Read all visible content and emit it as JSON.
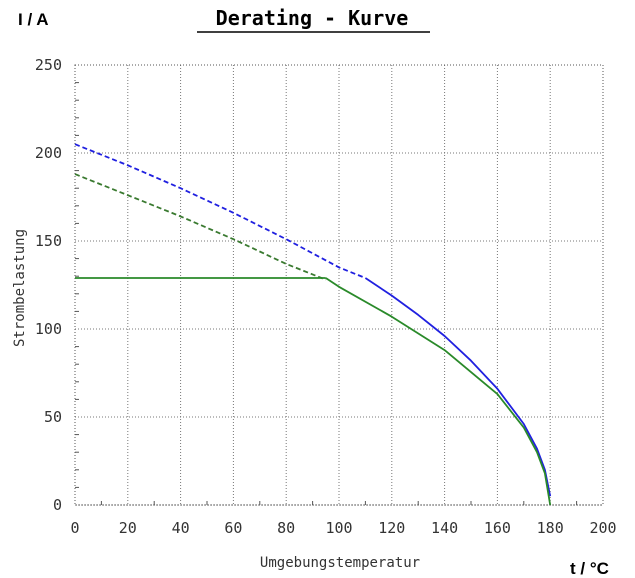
{
  "chart_data": {
    "type": "line",
    "title": "Derating - Kurve",
    "y_unit": "I / A",
    "x_unit": "t / °C",
    "xlabel": "Umgebungstemperatur",
    "ylabel": "Strombelastung",
    "xlim": [
      0,
      200
    ],
    "ylim": [
      0,
      250
    ],
    "x_ticks": [
      "0",
      "20",
      "40",
      "60",
      "80",
      "100",
      "120",
      "140",
      "160",
      "180",
      "200"
    ],
    "y_ticks": [
      "0",
      "50",
      "100",
      "150",
      "200",
      "250"
    ],
    "grid": true,
    "series": [
      {
        "style": "dashed",
        "color": "#2020e0",
        "x": [
          0,
          20,
          40,
          60,
          80,
          100,
          110
        ],
        "y": [
          205,
          193,
          180,
          166,
          151,
          135,
          129
        ]
      },
      {
        "style": "solid",
        "color": "#2020e0",
        "x": [
          110,
          120,
          130,
          140,
          150,
          160,
          170,
          175,
          178,
          180
        ],
        "y": [
          129,
          119,
          108,
          96,
          82,
          66,
          46,
          32,
          20,
          5
        ]
      },
      {
        "style": "dashed",
        "color": "#3a7a30",
        "x": [
          0,
          20,
          40,
          60,
          80,
          95
        ],
        "y": [
          188,
          176,
          164,
          151,
          137,
          128
        ]
      },
      {
        "style": "solid",
        "color": "#2a8a2a",
        "x": [
          0,
          20,
          40,
          60,
          80,
          95
        ],
        "y": [
          129,
          129,
          129,
          129,
          129,
          129
        ]
      },
      {
        "style": "solid",
        "color": "#2a8a2a",
        "x": [
          95,
          100,
          120,
          140,
          160,
          170,
          175,
          178,
          180
        ],
        "y": [
          129,
          124,
          107,
          88,
          63,
          44,
          30,
          18,
          0
        ]
      }
    ]
  }
}
